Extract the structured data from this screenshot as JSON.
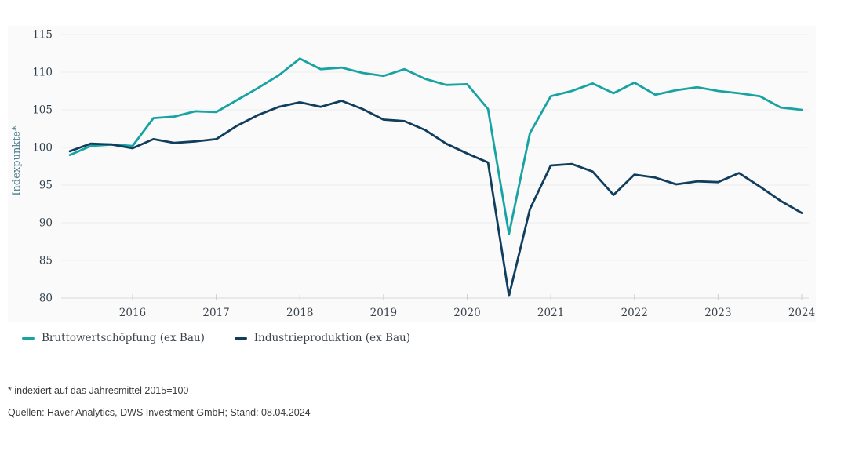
{
  "chart_data": {
    "type": "line",
    "title": "",
    "ylabel": "Indexpunkte*",
    "ylim": [
      80,
      115
    ],
    "y_ticks": [
      115,
      110,
      105,
      100,
      95,
      90,
      85,
      80
    ],
    "x_tick_labels": [
      "2016",
      "2017",
      "2018",
      "2019",
      "2020",
      "2021",
      "2022",
      "2023",
      "2024"
    ],
    "grid": true,
    "legend_position": "bottom-left",
    "x": [
      "2015-Q2",
      "2015-Q3",
      "2015-Q4",
      "2016-Q1",
      "2016-Q2",
      "2016-Q3",
      "2016-Q4",
      "2017-Q1",
      "2017-Q2",
      "2017-Q3",
      "2017-Q4",
      "2018-Q1",
      "2018-Q2",
      "2018-Q3",
      "2018-Q4",
      "2019-Q1",
      "2019-Q2",
      "2019-Q3",
      "2019-Q4",
      "2020-Q1",
      "2020-Q2",
      "2020-Q3",
      "2020-Q4",
      "2021-Q1",
      "2021-Q2",
      "2021-Q3",
      "2021-Q4",
      "2022-Q1",
      "2022-Q2",
      "2022-Q3",
      "2022-Q4",
      "2023-Q1",
      "2023-Q2",
      "2023-Q3",
      "2023-Q4",
      "2024-Q1"
    ],
    "series": [
      {
        "name": "Bruttowertschöpfung (ex Bau)",
        "color": "#18A3A3",
        "values": [
          99.0,
          100.2,
          100.4,
          100.2,
          103.9,
          104.1,
          104.8,
          104.7,
          106.3,
          107.9,
          109.6,
          111.8,
          110.4,
          110.6,
          109.9,
          109.5,
          110.4,
          109.1,
          108.3,
          108.4,
          105.1,
          88.5,
          101.9,
          106.8,
          107.5,
          108.5,
          107.2,
          108.6,
          107.0,
          107.6,
          108.0,
          107.5,
          107.2,
          106.8,
          105.3,
          105.0
        ]
      },
      {
        "name": "Industrieproduktion (ex Bau)",
        "color": "#113E5C",
        "values": [
          99.5,
          100.5,
          100.4,
          99.9,
          101.1,
          100.6,
          100.8,
          101.1,
          102.9,
          104.3,
          105.4,
          106.0,
          105.4,
          106.2,
          105.1,
          103.7,
          103.5,
          102.3,
          100.5,
          99.2,
          98.0,
          80.3,
          91.8,
          97.6,
          97.8,
          96.8,
          93.7,
          96.4,
          96.0,
          95.1,
          95.5,
          95.4,
          96.6,
          94.8,
          92.9,
          91.3
        ]
      }
    ]
  },
  "colors": {
    "panel_background": "#fafafa",
    "gridline": "#ececec",
    "baseline": "#d8d8d8",
    "tick_mark": "#cfcfcf",
    "axis_text": "#31404c",
    "ylabel_text": "#4e7e8c"
  },
  "footer": {
    "footnote": "* indexiert auf das Jahresmittel 2015=100",
    "source": "Quellen: Haver Analytics, DWS Investment GmbH; Stand: 08.04.2024"
  }
}
